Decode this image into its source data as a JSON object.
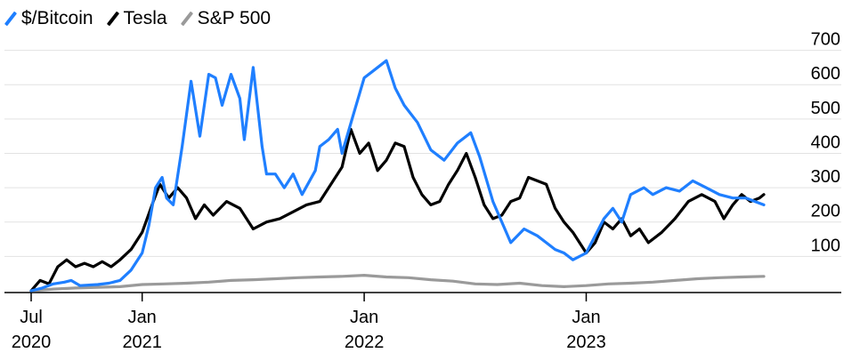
{
  "chart_data": {
    "type": "line",
    "title": "",
    "xlabel": "",
    "ylabel": "",
    "ylim": [
      0,
      730
    ],
    "y_ticks": [
      100,
      200,
      300,
      400,
      500,
      600,
      700
    ],
    "x_ticks": [
      {
        "label": [
          "Jul",
          "2020"
        ],
        "x": 2020.5
      },
      {
        "label": [
          "Jan",
          "2021"
        ],
        "x": 2021.0
      },
      {
        "label": [
          "Jan",
          "2022"
        ],
        "x": 2022.0
      },
      {
        "label": [
          "Jan",
          "2023"
        ],
        "x": 2023.0
      }
    ],
    "xlim": [
      2020.5,
      2023.8
    ],
    "grid": "horizontal",
    "y_axis_position": "right",
    "legend_position": "top-left",
    "series": [
      {
        "name": "$/Bitcoin",
        "color": "#1f7fff",
        "points": [
          [
            2020.5,
            0
          ],
          [
            2020.55,
            8
          ],
          [
            2020.6,
            20
          ],
          [
            2020.65,
            25
          ],
          [
            2020.68,
            30
          ],
          [
            2020.72,
            15
          ],
          [
            2020.8,
            18
          ],
          [
            2020.85,
            22
          ],
          [
            2020.9,
            30
          ],
          [
            2020.95,
            60
          ],
          [
            2021.0,
            110
          ],
          [
            2021.03,
            190
          ],
          [
            2021.06,
            300
          ],
          [
            2021.09,
            330
          ],
          [
            2021.11,
            270
          ],
          [
            2021.14,
            250
          ],
          [
            2021.18,
            420
          ],
          [
            2021.22,
            610
          ],
          [
            2021.26,
            450
          ],
          [
            2021.3,
            630
          ],
          [
            2021.33,
            620
          ],
          [
            2021.36,
            540
          ],
          [
            2021.4,
            630
          ],
          [
            2021.44,
            560
          ],
          [
            2021.46,
            440
          ],
          [
            2021.5,
            650
          ],
          [
            2021.54,
            420
          ],
          [
            2021.56,
            340
          ],
          [
            2021.6,
            340
          ],
          [
            2021.64,
            300
          ],
          [
            2021.68,
            340
          ],
          [
            2021.72,
            280
          ],
          [
            2021.78,
            350
          ],
          [
            2021.8,
            420
          ],
          [
            2021.84,
            440
          ],
          [
            2021.88,
            470
          ],
          [
            2021.9,
            400
          ],
          [
            2021.95,
            510
          ],
          [
            2022.0,
            620
          ],
          [
            2022.04,
            640
          ],
          [
            2022.1,
            670
          ],
          [
            2022.14,
            590
          ],
          [
            2022.18,
            540
          ],
          [
            2022.24,
            490
          ],
          [
            2022.3,
            410
          ],
          [
            2022.36,
            380
          ],
          [
            2022.42,
            430
          ],
          [
            2022.48,
            460
          ],
          [
            2022.52,
            390
          ],
          [
            2022.58,
            260
          ],
          [
            2022.62,
            200
          ],
          [
            2022.66,
            140
          ],
          [
            2022.72,
            180
          ],
          [
            2022.78,
            160
          ],
          [
            2022.82,
            140
          ],
          [
            2022.86,
            120
          ],
          [
            2022.9,
            110
          ],
          [
            2022.94,
            90
          ],
          [
            2023.0,
            110
          ],
          [
            2023.04,
            160
          ],
          [
            2023.08,
            210
          ],
          [
            2023.12,
            240
          ],
          [
            2023.16,
            200
          ],
          [
            2023.2,
            280
          ],
          [
            2023.26,
            300
          ],
          [
            2023.3,
            280
          ],
          [
            2023.36,
            300
          ],
          [
            2023.42,
            290
          ],
          [
            2023.48,
            320
          ],
          [
            2023.54,
            300
          ],
          [
            2023.6,
            280
          ],
          [
            2023.66,
            270
          ],
          [
            2023.72,
            270
          ],
          [
            2023.76,
            260
          ],
          [
            2023.8,
            250
          ]
        ]
      },
      {
        "name": "Tesla",
        "color": "#000000",
        "points": [
          [
            2020.5,
            0
          ],
          [
            2020.54,
            30
          ],
          [
            2020.58,
            20
          ],
          [
            2020.62,
            70
          ],
          [
            2020.66,
            90
          ],
          [
            2020.7,
            70
          ],
          [
            2020.74,
            80
          ],
          [
            2020.78,
            70
          ],
          [
            2020.82,
            85
          ],
          [
            2020.86,
            70
          ],
          [
            2020.9,
            90
          ],
          [
            2020.95,
            120
          ],
          [
            2021.0,
            170
          ],
          [
            2021.05,
            260
          ],
          [
            2021.08,
            310
          ],
          [
            2021.12,
            270
          ],
          [
            2021.16,
            300
          ],
          [
            2021.2,
            270
          ],
          [
            2021.24,
            210
          ],
          [
            2021.28,
            250
          ],
          [
            2021.32,
            220
          ],
          [
            2021.38,
            260
          ],
          [
            2021.44,
            240
          ],
          [
            2021.5,
            180
          ],
          [
            2021.56,
            200
          ],
          [
            2021.62,
            210
          ],
          [
            2021.68,
            230
          ],
          [
            2021.74,
            250
          ],
          [
            2021.8,
            260
          ],
          [
            2021.86,
            320
          ],
          [
            2021.9,
            360
          ],
          [
            2021.94,
            470
          ],
          [
            2021.98,
            400
          ],
          [
            2022.02,
            430
          ],
          [
            2022.06,
            350
          ],
          [
            2022.1,
            380
          ],
          [
            2022.14,
            430
          ],
          [
            2022.18,
            420
          ],
          [
            2022.22,
            330
          ],
          [
            2022.26,
            280
          ],
          [
            2022.3,
            250
          ],
          [
            2022.34,
            260
          ],
          [
            2022.38,
            310
          ],
          [
            2022.42,
            350
          ],
          [
            2022.46,
            400
          ],
          [
            2022.5,
            330
          ],
          [
            2022.54,
            250
          ],
          [
            2022.58,
            210
          ],
          [
            2022.62,
            220
          ],
          [
            2022.66,
            260
          ],
          [
            2022.7,
            270
          ],
          [
            2022.74,
            330
          ],
          [
            2022.78,
            320
          ],
          [
            2022.82,
            310
          ],
          [
            2022.86,
            240
          ],
          [
            2022.9,
            200
          ],
          [
            2022.94,
            170
          ],
          [
            2023.0,
            110
          ],
          [
            2023.04,
            140
          ],
          [
            2023.08,
            200
          ],
          [
            2023.12,
            180
          ],
          [
            2023.16,
            210
          ],
          [
            2023.2,
            160
          ],
          [
            2023.24,
            180
          ],
          [
            2023.28,
            140
          ],
          [
            2023.34,
            170
          ],
          [
            2023.4,
            210
          ],
          [
            2023.46,
            260
          ],
          [
            2023.52,
            280
          ],
          [
            2023.58,
            260
          ],
          [
            2023.62,
            210
          ],
          [
            2023.66,
            250
          ],
          [
            2023.7,
            280
          ],
          [
            2023.74,
            260
          ],
          [
            2023.78,
            270
          ],
          [
            2023.8,
            280
          ]
        ]
      },
      {
        "name": "S&P 500",
        "color": "#9a9a9a",
        "points": [
          [
            2020.5,
            0
          ],
          [
            2020.6,
            5
          ],
          [
            2020.7,
            8
          ],
          [
            2020.8,
            10
          ],
          [
            2020.9,
            12
          ],
          [
            2021.0,
            18
          ],
          [
            2021.1,
            20
          ],
          [
            2021.2,
            22
          ],
          [
            2021.3,
            25
          ],
          [
            2021.4,
            30
          ],
          [
            2021.5,
            32
          ],
          [
            2021.6,
            35
          ],
          [
            2021.7,
            38
          ],
          [
            2021.8,
            40
          ],
          [
            2021.9,
            42
          ],
          [
            2022.0,
            45
          ],
          [
            2022.1,
            40
          ],
          [
            2022.2,
            38
          ],
          [
            2022.3,
            32
          ],
          [
            2022.4,
            28
          ],
          [
            2022.5,
            20
          ],
          [
            2022.6,
            18
          ],
          [
            2022.7,
            22
          ],
          [
            2022.8,
            15
          ],
          [
            2022.9,
            12
          ],
          [
            2023.0,
            15
          ],
          [
            2023.1,
            20
          ],
          [
            2023.2,
            22
          ],
          [
            2023.3,
            25
          ],
          [
            2023.4,
            30
          ],
          [
            2023.5,
            35
          ],
          [
            2023.6,
            38
          ],
          [
            2023.7,
            40
          ],
          [
            2023.8,
            42
          ]
        ]
      }
    ]
  }
}
